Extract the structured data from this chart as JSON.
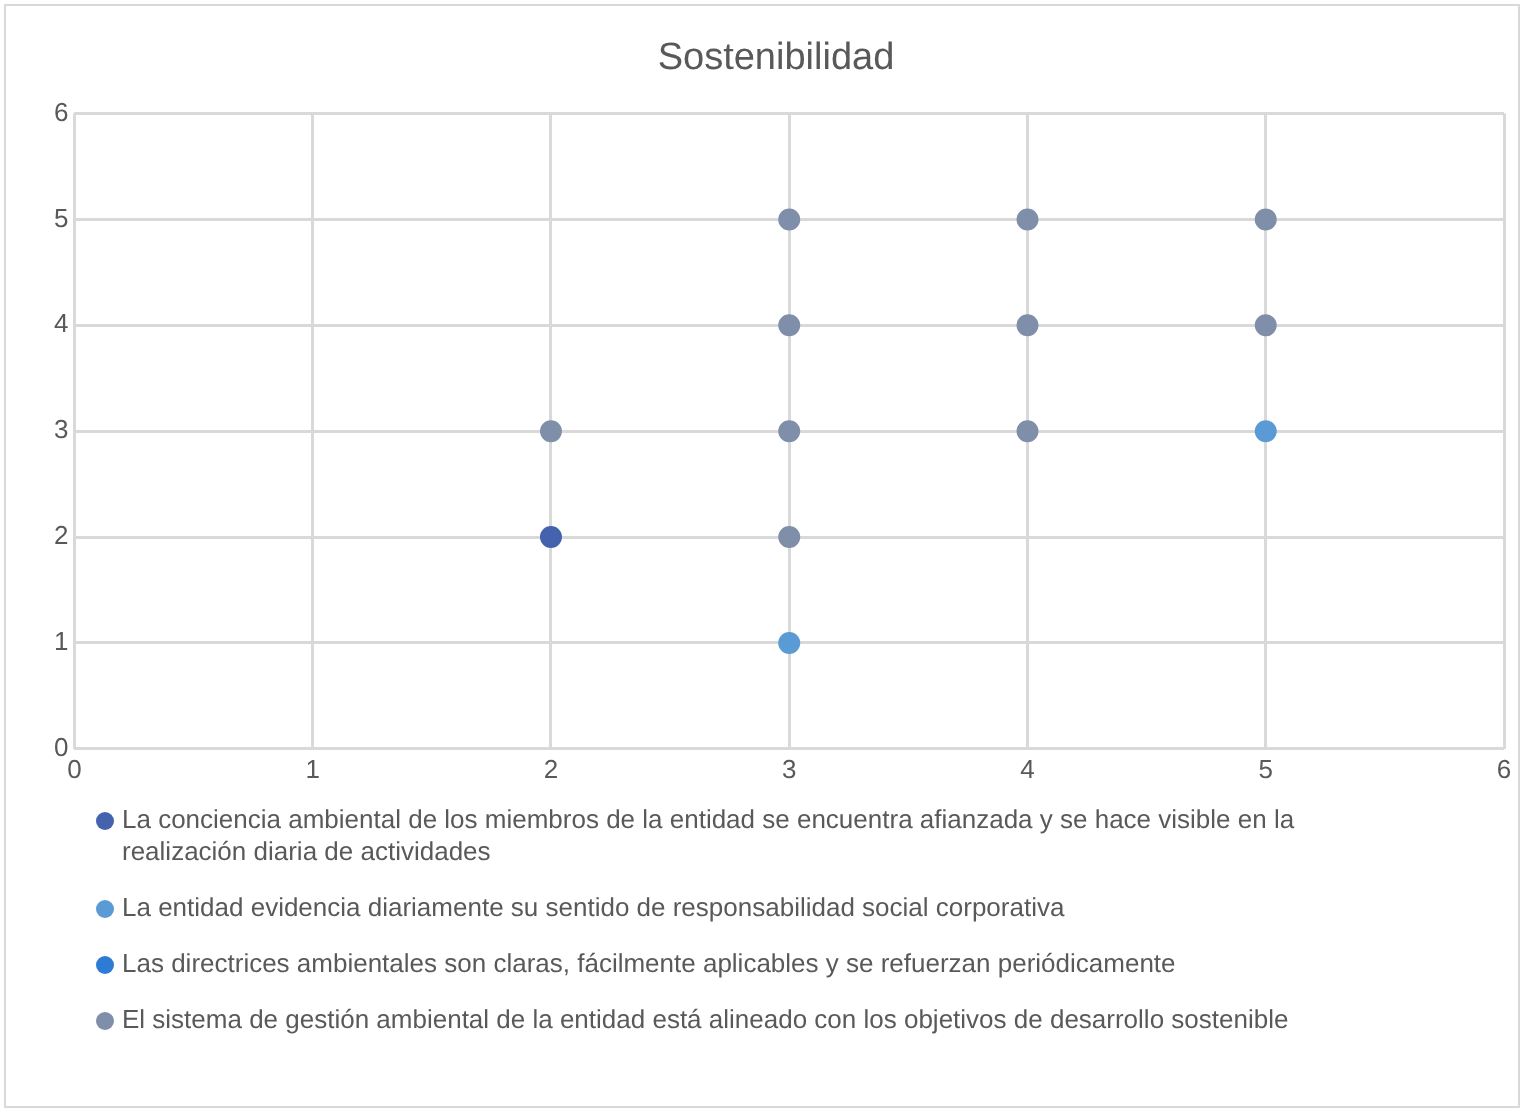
{
  "chart_data": {
    "type": "scatter",
    "title": "Sostenibilidad",
    "series": [
      {
        "name": "La conciencia ambiental de los miembros de la entidad se encuentra afianzada y se hace visible en la realización diaria de actividades",
        "color": "#4462ad",
        "x": [
          2
        ],
        "values": [
          2
        ]
      },
      {
        "name": "La entidad evidencia diariamente su sentido de responsabilidad social corporativa",
        "color": "#5b9bd5",
        "x": [
          3,
          5
        ],
        "values": [
          1,
          3
        ]
      },
      {
        "name": "Las directrices ambientales son claras, fácilmente aplicables y se refuerzan periódicamente",
        "color": "#2e7bd6"
      },
      {
        "name": "El sistema de gestión ambiental de la entidad está alineado con los objetivos de desarrollo sostenible",
        "color": "#7f8fa9",
        "x": [
          2,
          3,
          3,
          3,
          3,
          4,
          4,
          4,
          5,
          5
        ],
        "values": [
          3,
          2,
          3,
          4,
          5,
          3,
          4,
          5,
          4,
          5
        ]
      }
    ],
    "xlim": [
      0,
      6
    ],
    "xticks": [
      0,
      1,
      2,
      3,
      4,
      5,
      6
    ],
    "ylim": [
      0,
      6
    ],
    "yticks": [
      0,
      1,
      2,
      3,
      4,
      5,
      6
    ],
    "grid": true,
    "legend": "bottom",
    "marker": "circle"
  }
}
